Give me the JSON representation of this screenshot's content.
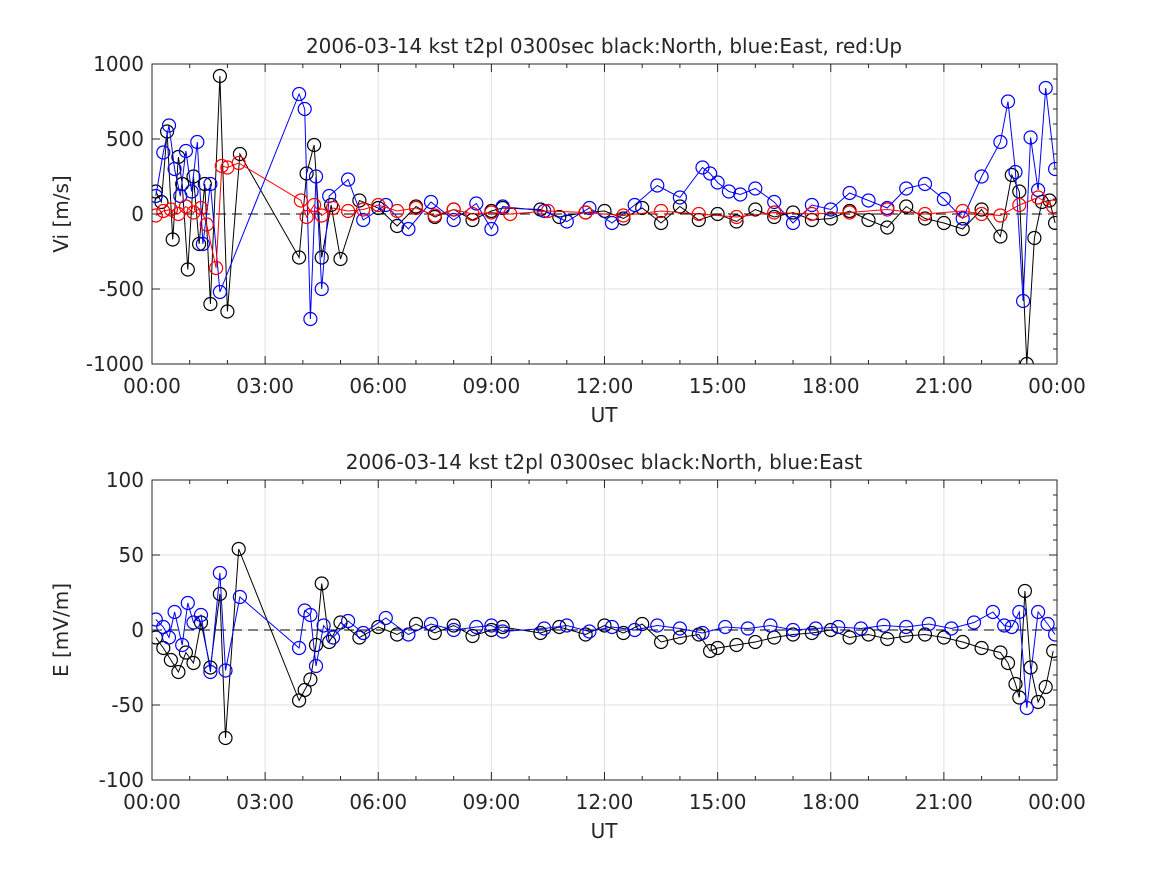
{
  "chart_data": [
    {
      "type": "scatter",
      "title": "2006-03-14 kst t2pl 0300sec black:North, blue:East, red:Up",
      "xlabel": "UT",
      "ylabel": "Vi [m/s]",
      "xlim": [
        0,
        24
      ],
      "ylim": [
        -1000,
        1000
      ],
      "xticks": [
        "00:00",
        "03:00",
        "06:00",
        "09:00",
        "12:00",
        "15:00",
        "18:00",
        "21:00",
        "00:00"
      ],
      "yticks": [
        "-1000",
        "-500",
        "0",
        "500",
        "1000"
      ],
      "grid": true,
      "series": [
        {
          "name": "North",
          "color": "#000000",
          "x": [
            0.1,
            0.25,
            0.4,
            0.55,
            0.7,
            0.8,
            0.95,
            1.1,
            1.25,
            1.4,
            1.55,
            1.8,
            2.0,
            2.33,
            3.9,
            4.1,
            4.3,
            4.5,
            4.75,
            5.0,
            5.5,
            6.0,
            6.5,
            7.0,
            7.5,
            8.0,
            8.5,
            9.0,
            9.3,
            10.3,
            10.8,
            11.5,
            12.0,
            12.5,
            13.0,
            13.5,
            14.0,
            14.5,
            15.0,
            15.5,
            16.0,
            16.5,
            17.0,
            17.5,
            18.0,
            18.5,
            19.0,
            19.5,
            20.0,
            20.5,
            21.0,
            21.5,
            22.0,
            22.5,
            22.8,
            23.0,
            23.2,
            23.4,
            23.6,
            23.8,
            23.95
          ],
          "y": [
            150,
            80,
            550,
            -170,
            380,
            200,
            -370,
            250,
            -200,
            200,
            -600,
            920,
            -650,
            400,
            -290,
            270,
            460,
            -290,
            60,
            -300,
            90,
            40,
            -80,
            50,
            -20,
            30,
            -40,
            20,
            40,
            30,
            -20,
            10,
            20,
            -30,
            40,
            -60,
            50,
            -40,
            0,
            -50,
            30,
            -20,
            10,
            -40,
            -30,
            20,
            -40,
            -90,
            50,
            -30,
            -60,
            -100,
            30,
            -150,
            260,
            150,
            -1000,
            -160,
            80,
            90,
            -60
          ]
        },
        {
          "name": "East",
          "color": "#0000ff",
          "x": [
            0.1,
            0.3,
            0.45,
            0.6,
            0.75,
            0.9,
            1.05,
            1.2,
            1.35,
            1.55,
            1.8,
            3.9,
            4.05,
            4.2,
            4.35,
            4.5,
            4.7,
            5.2,
            5.6,
            6.2,
            6.8,
            7.4,
            8.0,
            8.6,
            9.0,
            9.3,
            10.4,
            11.0,
            11.6,
            12.2,
            12.8,
            13.4,
            14.0,
            14.6,
            14.8,
            15.0,
            15.3,
            15.6,
            16.0,
            16.5,
            17.0,
            17.5,
            18.0,
            18.5,
            19.0,
            19.5,
            20.0,
            20.5,
            21.0,
            21.5,
            22.0,
            22.5,
            22.7,
            22.9,
            23.1,
            23.3,
            23.5,
            23.7,
            23.95
          ],
          "y": [
            120,
            410,
            590,
            300,
            120,
            420,
            150,
            480,
            -200,
            200,
            -520,
            800,
            700,
            -700,
            250,
            -500,
            120,
            230,
            -40,
            60,
            -100,
            80,
            -40,
            70,
            -100,
            50,
            20,
            -50,
            40,
            -60,
            60,
            190,
            110,
            310,
            270,
            210,
            150,
            130,
            170,
            80,
            -60,
            60,
            30,
            140,
            90,
            40,
            170,
            200,
            100,
            -30,
            250,
            480,
            750,
            280,
            -580,
            510,
            160,
            840,
            300
          ]
        },
        {
          "name": "Up",
          "color": "#ff0000",
          "x": [
            0.1,
            0.3,
            0.5,
            0.7,
            0.9,
            1.1,
            1.3,
            1.45,
            1.7,
            1.85,
            2.0,
            2.3,
            3.95,
            4.1,
            4.3,
            4.5,
            4.8,
            5.2,
            5.6,
            6.0,
            6.5,
            7.0,
            7.5,
            8.0,
            8.5,
            9.0,
            9.5,
            10.5,
            11.5,
            12.5,
            13.5,
            14.5,
            15.5,
            16.5,
            17.5,
            18.5,
            19.5,
            20.5,
            21.5,
            22.0,
            22.5,
            23.0,
            23.5,
            23.9
          ],
          "y": [
            -10,
            20,
            30,
            0,
            50,
            10,
            40,
            -70,
            -360,
            320,
            310,
            340,
            90,
            -20,
            60,
            -10,
            40,
            20,
            30,
            60,
            20,
            40,
            -10,
            30,
            0,
            10,
            0,
            20,
            10,
            -10,
            20,
            0,
            -20,
            10,
            0,
            10,
            30,
            0,
            20,
            0,
            -10,
            60,
            110,
            50
          ]
        }
      ]
    },
    {
      "type": "scatter",
      "title": "2006-03-14 kst t2pl 0300sec black:North, blue:East",
      "xlabel": "UT",
      "ylabel": "E [mV/m]",
      "xlim": [
        0,
        24
      ],
      "ylim": [
        -100,
        100
      ],
      "xticks": [
        "00:00",
        "03:00",
        "06:00",
        "09:00",
        "12:00",
        "15:00",
        "18:00",
        "21:00",
        "00:00"
      ],
      "yticks": [
        "-100",
        "-50",
        "0",
        "50",
        "100"
      ],
      "grid": true,
      "series": [
        {
          "name": "North",
          "color": "#000000",
          "x": [
            0.1,
            0.3,
            0.5,
            0.7,
            0.9,
            1.1,
            1.3,
            1.55,
            1.8,
            1.95,
            2.3,
            3.9,
            4.05,
            4.2,
            4.35,
            4.5,
            4.7,
            5.0,
            5.5,
            6.0,
            6.5,
            7.0,
            7.5,
            8.0,
            8.5,
            9.0,
            9.3,
            10.3,
            10.8,
            11.5,
            12.0,
            12.5,
            13.0,
            13.5,
            14.0,
            14.5,
            14.8,
            15.0,
            15.5,
            16.0,
            16.5,
            17.0,
            17.5,
            18.0,
            18.5,
            19.0,
            19.5,
            20.0,
            20.5,
            21.0,
            21.5,
            22.0,
            22.5,
            22.7,
            22.9,
            23.0,
            23.15,
            23.3,
            23.5,
            23.7,
            23.9
          ],
          "y": [
            -5,
            -12,
            -20,
            -28,
            -15,
            -22,
            5,
            -25,
            24,
            -72,
            54,
            -47,
            -40,
            -33,
            -10,
            31,
            -8,
            5,
            -5,
            2,
            -3,
            4,
            -2,
            3,
            -4,
            0,
            2,
            -2,
            2,
            -3,
            3,
            -2,
            4,
            -8,
            -5,
            -3,
            -14,
            -12,
            -10,
            -8,
            -5,
            -3,
            -2,
            0,
            -5,
            -3,
            -6,
            -4,
            -3,
            -5,
            -8,
            -12,
            -15,
            -22,
            -36,
            -45,
            26,
            -25,
            -48,
            -38,
            -14
          ]
        },
        {
          "name": "East",
          "color": "#0000ff",
          "x": [
            0.1,
            0.3,
            0.45,
            0.6,
            0.8,
            0.95,
            1.1,
            1.3,
            1.55,
            1.8,
            1.95,
            2.33,
            3.9,
            4.05,
            4.2,
            4.35,
            4.55,
            4.8,
            5.2,
            5.6,
            6.2,
            6.8,
            7.4,
            8.0,
            8.6,
            9.0,
            9.3,
            10.4,
            11.0,
            11.6,
            12.2,
            12.8,
            13.4,
            14.0,
            14.6,
            15.2,
            15.8,
            16.4,
            17.0,
            17.6,
            18.2,
            18.8,
            19.4,
            20.0,
            20.6,
            21.2,
            21.8,
            22.3,
            22.6,
            22.8,
            23.0,
            23.2,
            23.5,
            23.75,
            23.95
          ],
          "y": [
            7,
            2,
            -5,
            12,
            -10,
            18,
            5,
            10,
            -28,
            38,
            -27,
            22,
            -12,
            13,
            10,
            -24,
            3,
            -5,
            6,
            -2,
            8,
            -3,
            4,
            0,
            2,
            3,
            -1,
            1,
            3,
            -1,
            2,
            0,
            3,
            1,
            -2,
            2,
            1,
            3,
            0,
            1,
            2,
            1,
            3,
            2,
            4,
            1,
            5,
            12,
            3,
            2,
            12,
            -52,
            12,
            4,
            -3
          ]
        }
      ]
    }
  ]
}
